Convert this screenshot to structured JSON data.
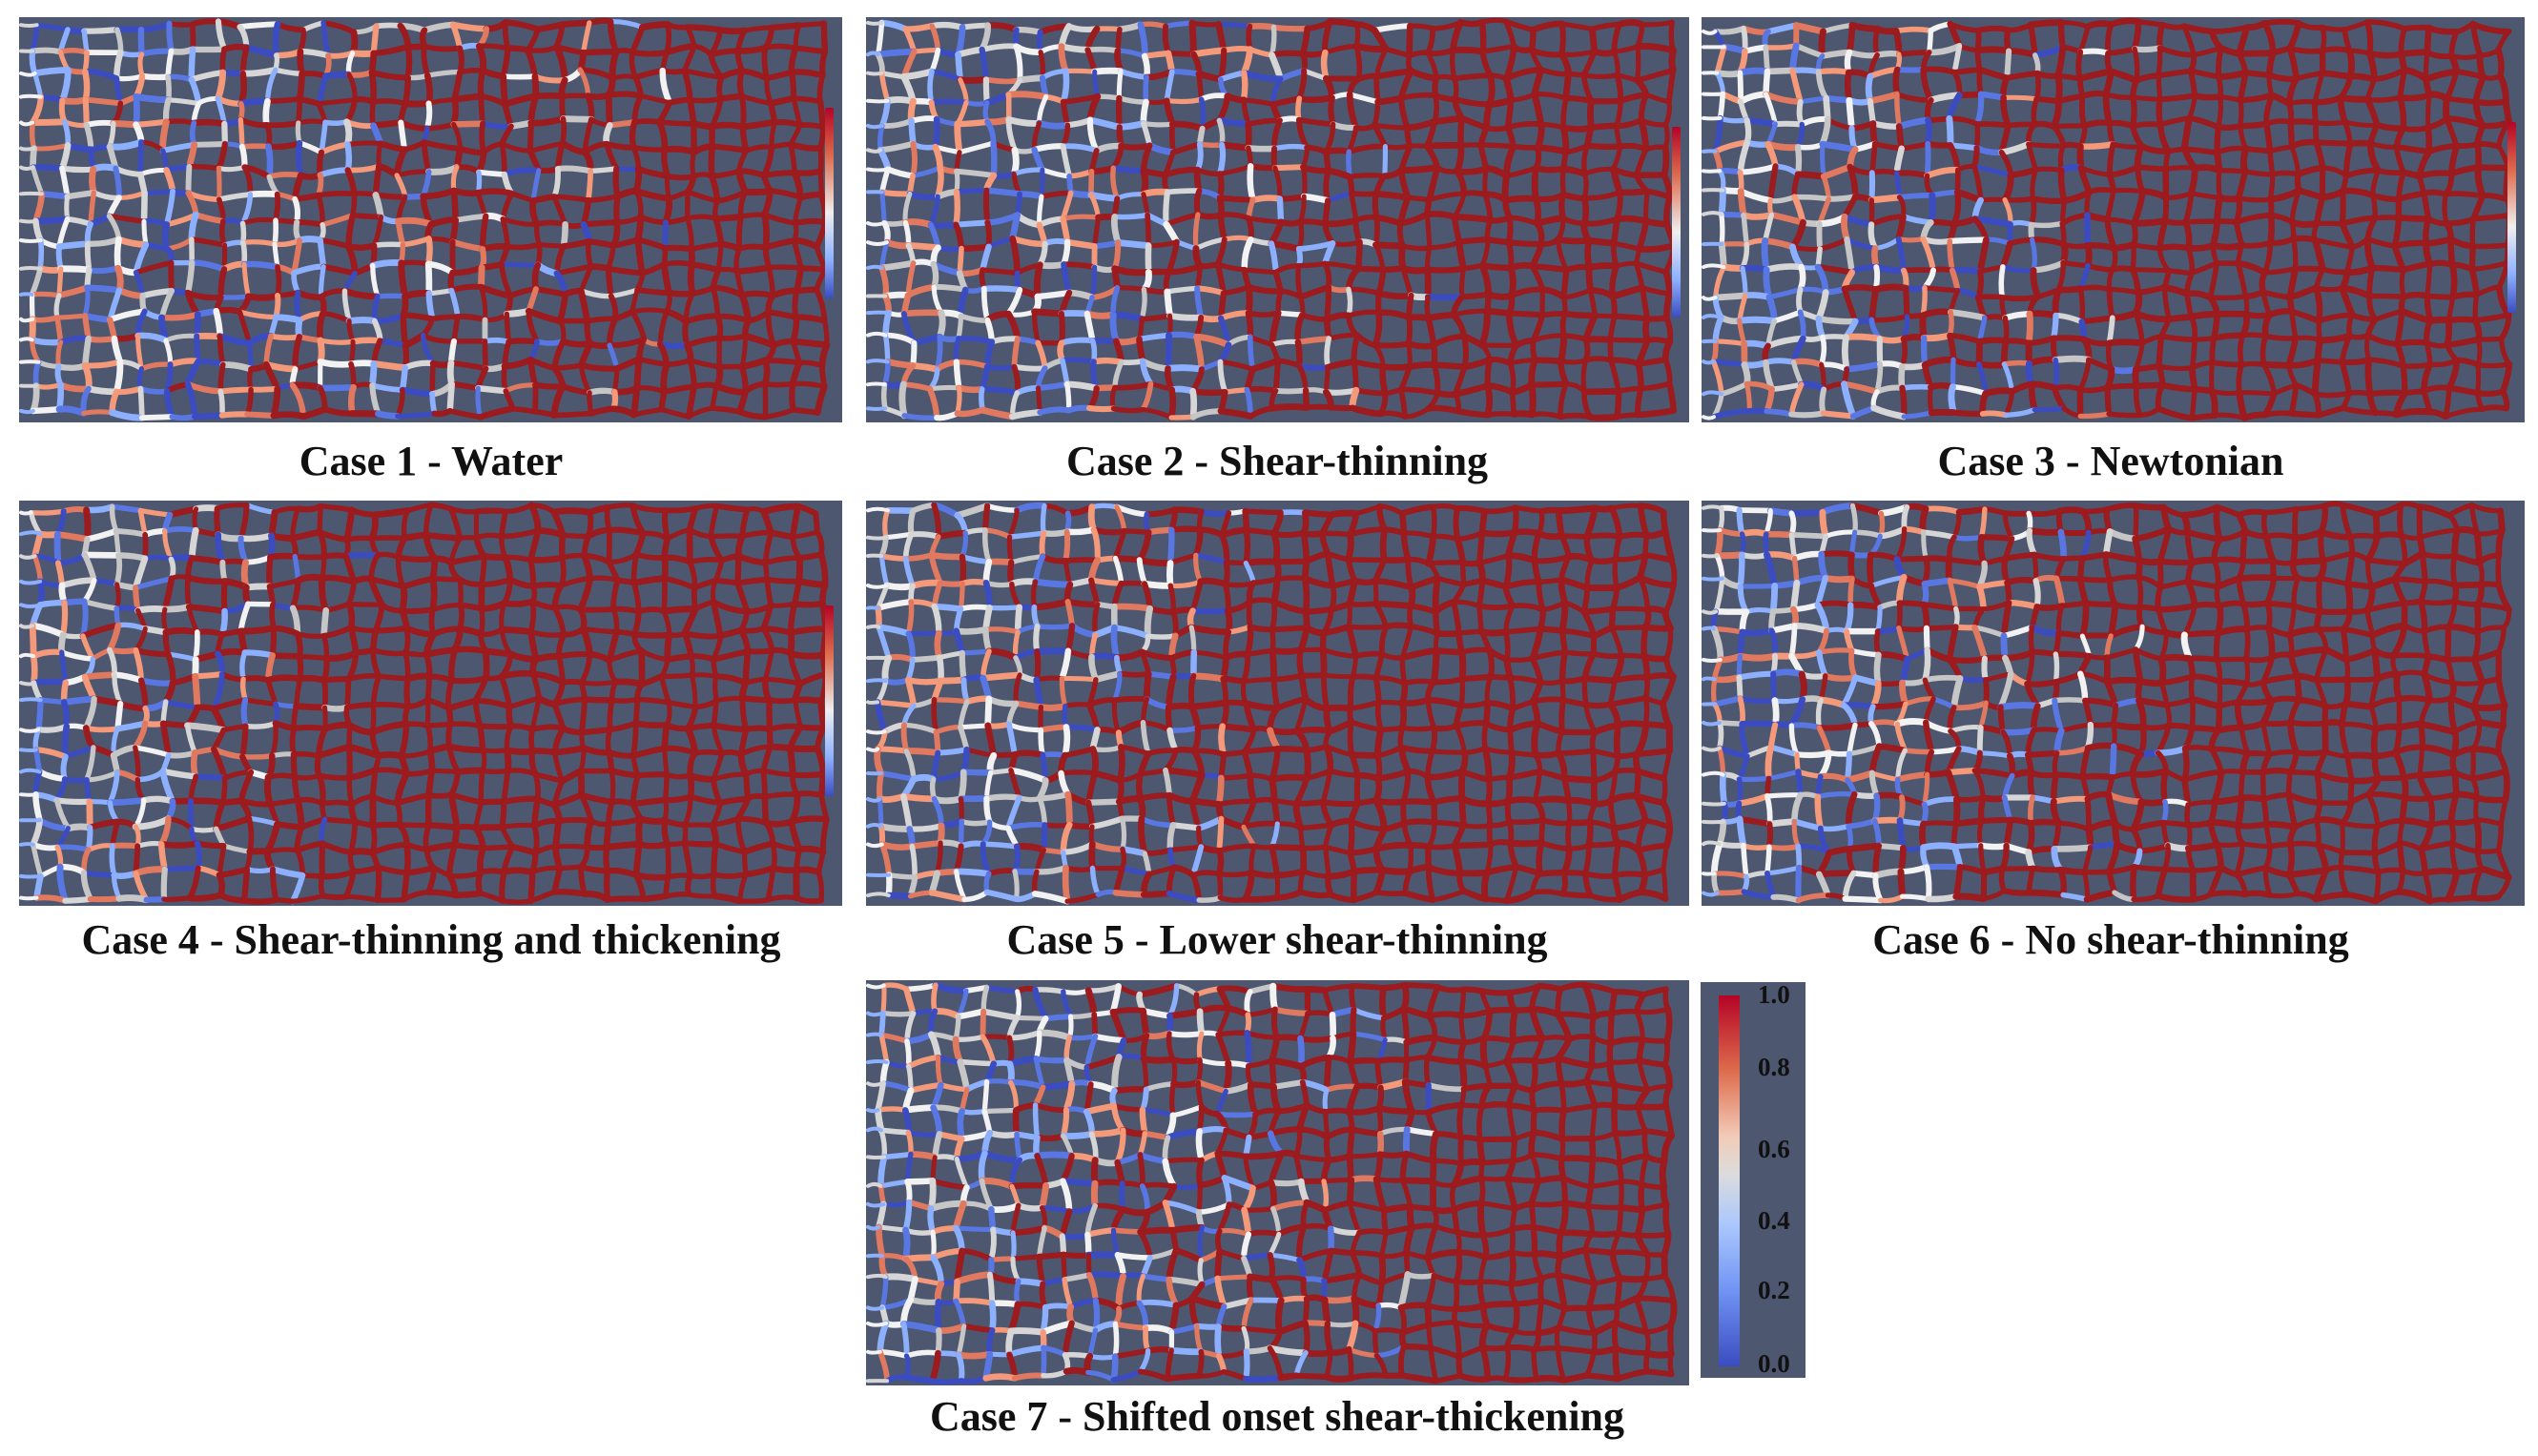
{
  "panels": [
    {
      "id": "case1",
      "caption": "Case 1 - Water"
    },
    {
      "id": "case2",
      "caption": "Case 2 - Shear-thinning"
    },
    {
      "id": "case3",
      "caption": "Case 3 - Newtonian"
    },
    {
      "id": "case4",
      "caption": "Case 4 - Shear-thinning and thickening"
    },
    {
      "id": "case5",
      "caption": "Case 5 - Lower shear-thinning"
    },
    {
      "id": "case6",
      "caption": "Case 6 - No shear-thinning"
    },
    {
      "id": "case7",
      "caption": "Case 7 - Shifted onset shear-thickening"
    }
  ],
  "colorbar": {
    "ticks": [
      "1.0",
      "0.8",
      "0.6",
      "0.4",
      "0.2",
      "0.0"
    ],
    "colormap": [
      "#3b4cc0",
      "#8db0fe",
      "#dddddd",
      "#f49a7b",
      "#b40426"
    ]
  },
  "colors": {
    "network": "#9b1b1e",
    "background": "#4e5770"
  }
}
